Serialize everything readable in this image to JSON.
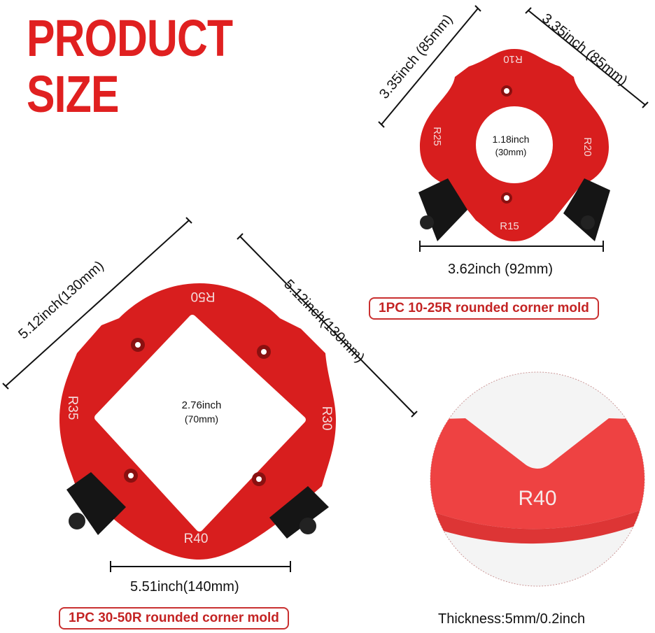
{
  "title": {
    "line1": "PRODUCT",
    "line2": "SIZE"
  },
  "colors": {
    "brand_red": "#e02020",
    "mold_red": "#d81e1e",
    "clamp": "#151515"
  },
  "small_mold": {
    "width_left": "3.35inch (85mm)",
    "width_right": "3.35inch (85mm)",
    "length": "3.62inch (92mm)",
    "hole_inch": "1.18inch",
    "hole_mm": "(30mm)",
    "radii": {
      "top": "R10",
      "right": "R20",
      "bottom": "R15",
      "left": "R25"
    },
    "caption": "1PC 10-25R rounded corner mold"
  },
  "large_mold": {
    "width_left": "5.12inch(130mm)",
    "width_right": "5.12inch(130mm)",
    "length": "5.51inch(140mm)",
    "hole_inch": "2.76inch",
    "hole_mm": "(70mm)",
    "radii": {
      "top": "R50",
      "right": "R30",
      "bottom": "R40",
      "left": "R35"
    },
    "caption": "1PC 30-50R rounded corner mold"
  },
  "detail": {
    "radius_label": "R40",
    "thickness": "Thickness:5mm/0.2inch"
  }
}
